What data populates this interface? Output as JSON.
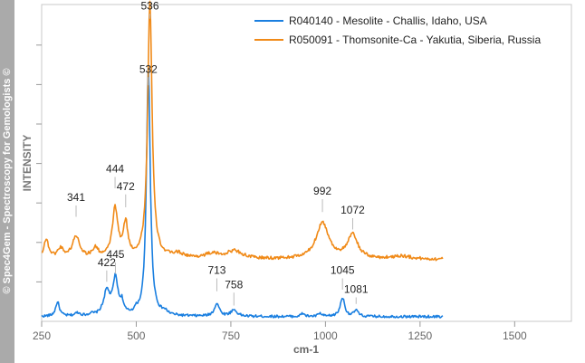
{
  "watermark": "© Spec4Gem - Spectroscopy for Gemologists ©",
  "chart_data": {
    "type": "line",
    "xlabel": "cm-1",
    "ylabel": "INTENSITY",
    "xlim": [
      250,
      1650
    ],
    "ylim": [
      0,
      100
    ],
    "x_ticks": [
      "250",
      "500",
      "750",
      "1000",
      "1250",
      "1500"
    ],
    "legend_position": "top-right",
    "grid": false,
    "series": [
      {
        "name": "R040140 - Mesolite - Challis, Idaho, USA",
        "color": "#1a7fe0",
        "baseline": 1.5,
        "noise": 0.4,
        "x_range": [
          250,
          1310
        ],
        "peaks": [
          {
            "x": 292,
            "h": 4.5,
            "w": 6
          },
          {
            "x": 345,
            "h": 1.0,
            "w": 8
          },
          {
            "x": 380,
            "h": 0.6,
            "w": 6
          },
          {
            "x": 422,
            "h": 7.5,
            "w": 10
          },
          {
            "x": 445,
            "h": 11.5,
            "w": 8
          },
          {
            "x": 462,
            "h": 3.5,
            "w": 5
          },
          {
            "x": 500,
            "h": 1.0,
            "w": 6
          },
          {
            "x": 532,
            "h": 79.0,
            "w": 6
          },
          {
            "x": 575,
            "h": 1.0,
            "w": 10
          },
          {
            "x": 713,
            "h": 4.0,
            "w": 8
          },
          {
            "x": 758,
            "h": 2.0,
            "w": 10
          },
          {
            "x": 940,
            "h": 1.0,
            "w": 5
          },
          {
            "x": 985,
            "h": 1.0,
            "w": 5
          },
          {
            "x": 1045,
            "h": 6.0,
            "w": 7
          },
          {
            "x": 1081,
            "h": 2.0,
            "w": 6
          }
        ]
      },
      {
        "name": "R050091 - Thomsonite-Ca - Yakutia, Siberia, Russia",
        "color": "#f08a18",
        "baseline": 19.5,
        "noise": 0.5,
        "x_range": [
          250,
          1310
        ],
        "peaks": [
          {
            "x": 262,
            "h": 6.0,
            "w": 8
          },
          {
            "x": 300,
            "h": 3.0,
            "w": 10
          },
          {
            "x": 341,
            "h": 7.0,
            "w": 12
          },
          {
            "x": 392,
            "h": 3.0,
            "w": 10
          },
          {
            "x": 444,
            "h": 15.5,
            "w": 9
          },
          {
            "x": 472,
            "h": 10.5,
            "w": 7
          },
          {
            "x": 536,
            "h": 81.0,
            "w": 7
          },
          {
            "x": 610,
            "h": 1.5,
            "w": 20
          },
          {
            "x": 700,
            "h": 1.5,
            "w": 25
          },
          {
            "x": 760,
            "h": 2.5,
            "w": 25
          },
          {
            "x": 992,
            "h": 11.5,
            "w": 20
          },
          {
            "x": 1072,
            "h": 7.5,
            "w": 16
          },
          {
            "x": 1200,
            "h": 1.0,
            "w": 30
          }
        ]
      }
    ],
    "annotations": [
      {
        "label": "536",
        "x": 536,
        "y": 98.5,
        "tick_bottom": 95.5
      },
      {
        "label": "532",
        "x": 532,
        "y": 78.5,
        "tick_bottom": 74.5
      },
      {
        "label": "444",
        "x": 444,
        "y": 47.0,
        "tick_bottom": 42.0
      },
      {
        "label": "472",
        "x": 472,
        "y": 41.5,
        "tick_bottom": 36.0
      },
      {
        "label": "341",
        "x": 341,
        "y": 38.0,
        "tick_bottom": 33.0
      },
      {
        "label": "992",
        "x": 992,
        "y": 40.0,
        "tick_bottom": 34.5
      },
      {
        "label": "1072",
        "x": 1072,
        "y": 34.0,
        "tick_bottom": 29.0
      },
      {
        "label": "422",
        "x": 422,
        "y": 17.5,
        "tick_bottom": 12.5
      },
      {
        "label": "445",
        "x": 445,
        "y": 20.0,
        "tick_bottom": 15.0
      },
      {
        "label": "713",
        "x": 713,
        "y": 15.0,
        "tick_bottom": 9.5
      },
      {
        "label": "758",
        "x": 758,
        "y": 10.5,
        "tick_bottom": 5.0
      },
      {
        "label": "1045",
        "x": 1045,
        "y": 15.0,
        "tick_bottom": 10.0
      },
      {
        "label": "1081",
        "x": 1081,
        "y": 9.0,
        "tick_bottom": 5.5
      }
    ]
  }
}
